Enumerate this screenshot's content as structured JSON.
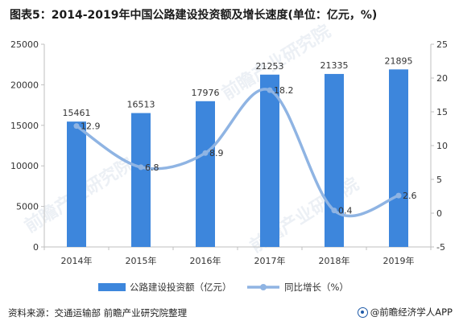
{
  "title": "图表5：2014-2019年中国公路建设投资额及增长速度(单位：亿元，%)",
  "source": "资料来源：交通运输部 前瞻产业研究院整理",
  "brand": "@前瞻经济学人APP",
  "watermark": "前瞻产业研究院",
  "colors": {
    "bar": "#3d86dc",
    "line": "#8fb4e3",
    "axis": "#bfbfbf",
    "text": "#333333"
  },
  "chart_data": {
    "type": "bar",
    "categories": [
      "2014年",
      "2015年",
      "2016年",
      "2017年",
      "2018年",
      "2019年"
    ],
    "series": [
      {
        "name": "公路建设投资额（亿元）",
        "type": "bar",
        "axis": "left",
        "values": [
          15461,
          16513,
          17976,
          21253,
          21335,
          21895
        ]
      },
      {
        "name": "同比增长（%）",
        "type": "line",
        "axis": "right",
        "values": [
          12.9,
          6.8,
          8.9,
          18.2,
          0.4,
          2.6
        ]
      }
    ],
    "y_left": {
      "min": 0,
      "max": 25000,
      "ticks": [
        "0",
        "5000",
        "10000",
        "15000",
        "20000",
        "25000"
      ]
    },
    "y_right": {
      "min": -5,
      "max": 25,
      "ticks": [
        "-5",
        "0",
        "5",
        "10",
        "15",
        "20",
        "25"
      ]
    },
    "grid": false,
    "legend": "bottom"
  }
}
